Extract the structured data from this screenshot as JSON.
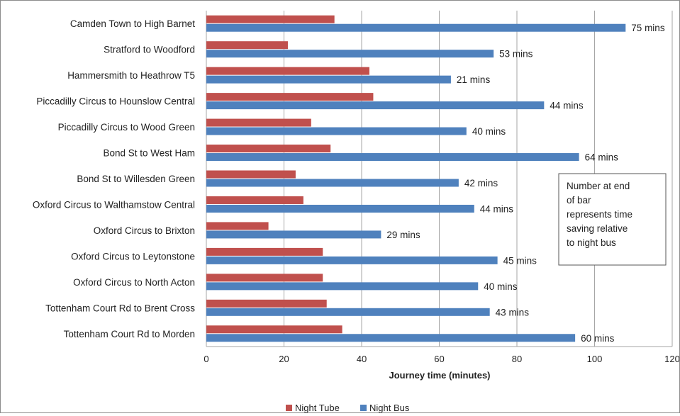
{
  "chart_data": {
    "type": "bar",
    "orientation": "horizontal",
    "categories": [
      "Camden Town to High Barnet",
      "Stratford to Woodford",
      "Hammersmith to Heathrow T5",
      "Piccadilly Circus to Hounslow Central",
      "Piccadilly Circus to Wood Green",
      "Bond St to West Ham",
      "Bond St to Willesden Green",
      "Oxford Circus to Walthamstow Central",
      "Oxford Circus to Brixton",
      "Oxford Circus to Leytonstone",
      "Oxford Circus to North Acton",
      "Tottenham Court Rd to Brent Cross",
      "Tottenham Court Rd to Morden"
    ],
    "series": [
      {
        "name": "Night Tube",
        "color": "#c0504d",
        "values": [
          33,
          21,
          42,
          43,
          27,
          32,
          23,
          25,
          16,
          30,
          30,
          31,
          35
        ]
      },
      {
        "name": "Night Bus",
        "color": "#4f81bd",
        "values": [
          108,
          74,
          63,
          87,
          67,
          96,
          65,
          69,
          45,
          75,
          70,
          73,
          95
        ]
      }
    ],
    "data_labels": [
      "75 mins",
      "53 mins",
      "21 mins",
      "44 mins",
      "40 mins",
      "64 mins",
      "42 mins",
      "44 mins",
      "29 mins",
      "45 mins",
      "40 mins",
      "43 mins",
      "60 mins"
    ],
    "xlabel": "Journey time (minutes)",
    "xlim": [
      0,
      120
    ],
    "xticks": [
      0,
      20,
      40,
      60,
      80,
      100,
      120
    ],
    "grid": "vertical",
    "legend_position": "bottom",
    "annotation": [
      "Number at end",
      "of bar",
      "represents time",
      "saving relative",
      "to night bus"
    ]
  }
}
